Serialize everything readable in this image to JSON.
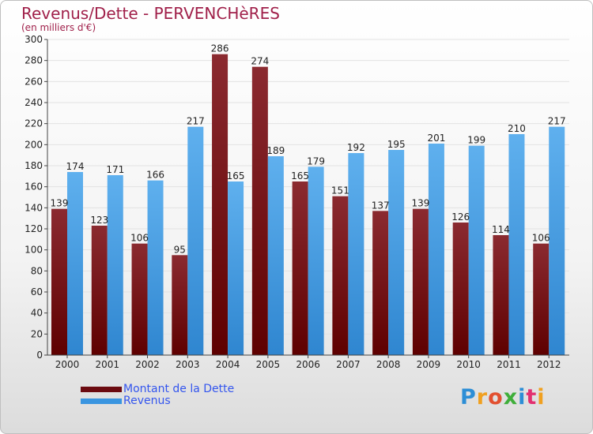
{
  "title": "Revenus/Dette - PERVENCHèRES",
  "subtitle": "(en milliers d'€)",
  "brand": "Proxiti",
  "colors": {
    "dette_top": "#8b2a30",
    "dette_bottom": "#5e0000",
    "revenus_top": "#5fb0ee",
    "revenus_bottom": "#2f86d0",
    "title": "#a0204a",
    "legend_text": "#3355ee"
  },
  "legend": [
    {
      "name": "Montant de la Dette",
      "color": "#6b0a10"
    },
    {
      "name": "Revenus",
      "color": "#3a95e0"
    }
  ],
  "chart_data": {
    "type": "bar",
    "title": "Revenus/Dette - PERVENCHèRES",
    "ylabel": "(en milliers d'€)",
    "xlabel": "",
    "categories": [
      "2000",
      "2001",
      "2002",
      "2003",
      "2004",
      "2005",
      "2006",
      "2007",
      "2008",
      "2009",
      "2010",
      "2011",
      "2012"
    ],
    "series": [
      {
        "name": "Montant de la Dette",
        "values": [
          139,
          123,
          106,
          95,
          286,
          274,
          165,
          151,
          137,
          139,
          126,
          114,
          106
        ]
      },
      {
        "name": "Revenus",
        "values": [
          174,
          171,
          166,
          217,
          165,
          189,
          179,
          192,
          195,
          201,
          199,
          210,
          217
        ]
      }
    ],
    "ylim": [
      0,
      300
    ],
    "yticks": [
      0,
      20,
      40,
      60,
      80,
      100,
      120,
      140,
      160,
      180,
      200,
      220,
      240,
      260,
      280,
      300
    ],
    "grid": true,
    "legend_position": "bottom-left"
  }
}
